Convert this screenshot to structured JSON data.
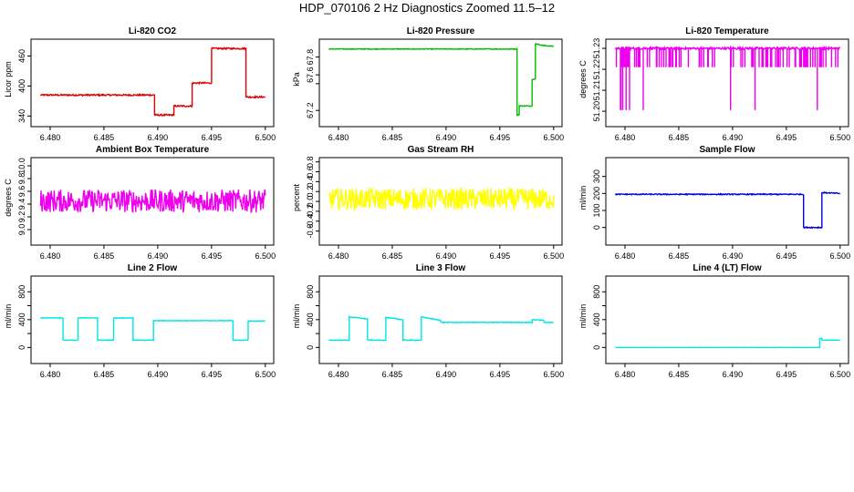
{
  "figure_title": "HDP_070106  2 Hz Diagnostics Zoomed 11.5–12",
  "chart_data": [
    {
      "type": "line",
      "title": "Li-820 CO2",
      "ylabel": "Licor ppm",
      "color": "#dd0000",
      "xlim": [
        6.4789,
        6.5001
      ],
      "ylim": [
        337,
        490
      ],
      "xticks": [
        "6.480",
        "6.485",
        "6.490",
        "6.495",
        "6.500"
      ],
      "yticks": [
        {
          "v": 340,
          "label": "340"
        },
        {
          "v": 400,
          "label": "400"
        },
        {
          "v": 460,
          "label": "460"
        }
      ],
      "x": [
        6.4791,
        6.4897,
        6.4897,
        6.4915,
        6.4915,
        6.4932,
        6.4932,
        6.495,
        6.495,
        6.4982,
        6.4982,
        6.5
      ],
      "y": [
        382,
        382,
        342,
        342,
        360,
        360,
        406,
        406,
        475,
        475,
        378,
        378
      ],
      "noise": 1.5
    },
    {
      "type": "line",
      "title": "Li-820 Pressure",
      "ylabel": "kPa",
      "color": "#00bb00",
      "xlim": [
        6.4789,
        6.5001
      ],
      "ylim": [
        67.12,
        67.98
      ],
      "xticks": [
        "6.480",
        "6.485",
        "6.490",
        "6.495",
        "6.500"
      ],
      "yticks": [
        {
          "v": 67.2,
          "label": "67.2"
        },
        {
          "v": 67.5,
          "label": ""
        },
        {
          "v": 67.6,
          "label": "67.6"
        },
        {
          "v": 67.8,
          "label": "67.8"
        }
      ],
      "x": [
        6.4791,
        6.4966,
        6.4966,
        6.4968,
        6.4968,
        6.498,
        6.498,
        6.4983,
        6.4983,
        6.499,
        6.5
      ],
      "y": [
        67.89,
        67.89,
        67.15,
        67.15,
        67.25,
        67.25,
        67.55,
        67.55,
        67.95,
        67.93,
        67.92
      ],
      "noise": 0.004
    },
    {
      "type": "line",
      "title": "Li-820 Temperature",
      "ylabel": "degrees C",
      "color": "#ee00ee",
      "xlim": [
        6.4789,
        6.5001
      ],
      "ylim": [
        51.197,
        51.2335
      ],
      "xticks": [
        "6.480",
        "6.485",
        "6.490",
        "6.495",
        "6.500"
      ],
      "yticks": [
        {
          "v": 51.2,
          "label": "51.20"
        },
        {
          "v": 51.21,
          "label": "51.21"
        },
        {
          "v": 51.22,
          "label": "51.22"
        },
        {
          "v": 51.23,
          "label": "51.23"
        }
      ],
      "x": [
        6.4791,
        6.5
      ],
      "y": [
        51.23,
        51.23
      ],
      "noise": 0.0005
    },
    {
      "type": "line",
      "title": "Ambient Box Temperature",
      "ylabel": "degrees C",
      "color": "#ee00ee",
      "xlim": [
        6.4789,
        6.5001
      ],
      "ylim": [
        8.9,
        10.1
      ],
      "xticks": [
        "6.480",
        "6.485",
        "6.490",
        "6.495",
        "6.500"
      ],
      "yticks": [
        {
          "v": 9.0,
          "label": "9.0"
        },
        {
          "v": 9.2,
          "label": "9.2"
        },
        {
          "v": 9.4,
          "label": "9.4"
        },
        {
          "v": 9.6,
          "label": "9.6"
        },
        {
          "v": 9.8,
          "label": "9.8"
        },
        {
          "v": 10.0,
          "label": "10.0"
        }
      ],
      "x": [
        6.4791,
        6.5
      ],
      "y": [
        9.45,
        9.45
      ],
      "noise": 0.18
    },
    {
      "type": "line",
      "title": "Gas Stream RH",
      "ylabel": "percent",
      "color": "#ffff00",
      "xlim": [
        6.4789,
        6.5001
      ],
      "ylim": [
        -0.7,
        0.85
      ],
      "xticks": [
        "6.480",
        "6.485",
        "6.490",
        "6.495",
        "6.500"
      ],
      "yticks": [
        {
          "v": -0.6,
          "label": "-0.6"
        },
        {
          "v": -0.4,
          "label": "-0.4"
        },
        {
          "v": -0.2,
          "label": "-0.2"
        },
        {
          "v": 0.0,
          "label": "0.0"
        },
        {
          "v": 0.2,
          "label": "0.2"
        },
        {
          "v": 0.4,
          "label": "0.4"
        },
        {
          "v": 0.6,
          "label": "0.6"
        },
        {
          "v": 0.8,
          "label": "0.8"
        }
      ],
      "x": [
        6.4791,
        6.5
      ],
      "y": [
        0.05,
        0.05
      ],
      "noise": 0.22
    },
    {
      "type": "line",
      "title": "Sample Flow",
      "ylabel": "ml/min",
      "color": "#0000dd",
      "xlim": [
        6.4789,
        6.5001
      ],
      "ylim": [
        -50,
        400
      ],
      "xticks": [
        "6.480",
        "6.485",
        "6.490",
        "6.495",
        "6.500"
      ],
      "yticks": [
        {
          "v": 0,
          "label": "0"
        },
        {
          "v": 100,
          "label": "100"
        },
        {
          "v": 200,
          "label": "200"
        },
        {
          "v": 300,
          "label": "300"
        }
      ],
      "x": [
        6.4791,
        6.4966,
        6.4966,
        6.4983,
        6.4983,
        6.5
      ],
      "y": [
        195,
        195,
        0,
        0,
        205,
        200
      ],
      "noise": 3
    },
    {
      "type": "line",
      "title": "Line 2 Flow",
      "ylabel": "ml/min",
      "color": "#00e5e5",
      "xlim": [
        6.4789,
        6.5001
      ],
      "ylim": [
        -100,
        1000
      ],
      "xticks": [
        "6.480",
        "6.485",
        "6.490",
        "6.495",
        "6.500"
      ],
      "yticks": [
        {
          "v": 0,
          "label": "0"
        },
        {
          "v": 200,
          "label": ""
        },
        {
          "v": 400,
          "label": "400"
        },
        {
          "v": 600,
          "label": ""
        },
        {
          "v": 800,
          "label": "800"
        }
      ],
      "x": [
        6.4791,
        6.4812,
        6.4812,
        6.4826,
        6.4826,
        6.4844,
        6.4844,
        6.4859,
        6.4859,
        6.4877,
        6.4877,
        6.4896,
        6.4896,
        6.497,
        6.497,
        6.4984,
        6.4984,
        6.5
      ],
      "y": [
        425,
        425,
        105,
        105,
        425,
        425,
        105,
        105,
        425,
        425,
        105,
        105,
        385,
        385,
        105,
        105,
        380,
        380
      ],
      "noise": 4
    },
    {
      "type": "line",
      "title": "Line 3 Flow",
      "ylabel": "ml/min",
      "color": "#00e5e5",
      "xlim": [
        6.4789,
        6.5001
      ],
      "ylim": [
        -100,
        1000
      ],
      "xticks": [
        "6.480",
        "6.485",
        "6.490",
        "6.495",
        "6.500"
      ],
      "yticks": [
        {
          "v": 0,
          "label": "0"
        },
        {
          "v": 200,
          "label": ""
        },
        {
          "v": 400,
          "label": "400"
        },
        {
          "v": 600,
          "label": ""
        },
        {
          "v": 800,
          "label": "800"
        }
      ],
      "x": [
        6.4791,
        6.481,
        6.481,
        6.4827,
        6.4827,
        6.4844,
        6.4844,
        6.486,
        6.486,
        6.4877,
        6.4877,
        6.4895,
        6.4895,
        6.498,
        6.498,
        6.4991,
        6.4991,
        6.5
      ],
      "y": [
        105,
        105,
        440,
        410,
        105,
        105,
        430,
        400,
        105,
        105,
        440,
        390,
        360,
        360,
        400,
        390,
        360,
        360
      ],
      "noise": 5
    },
    {
      "type": "line",
      "title": "Line 4 (LT) Flow",
      "ylabel": "ml/min",
      "color": "#00e5e5",
      "xlim": [
        6.4789,
        6.5001
      ],
      "ylim": [
        -100,
        1000
      ],
      "xticks": [
        "6.480",
        "6.485",
        "6.490",
        "6.495",
        "6.500"
      ],
      "yticks": [
        {
          "v": 0,
          "label": "0"
        },
        {
          "v": 200,
          "label": ""
        },
        {
          "v": 400,
          "label": "400"
        },
        {
          "v": 600,
          "label": ""
        },
        {
          "v": 800,
          "label": "800"
        }
      ],
      "x": [
        6.4791,
        6.4981,
        6.4981,
        6.4983,
        6.4983,
        6.5
      ],
      "y": [
        0,
        0,
        130,
        130,
        105,
        105
      ],
      "noise": 1
    }
  ]
}
